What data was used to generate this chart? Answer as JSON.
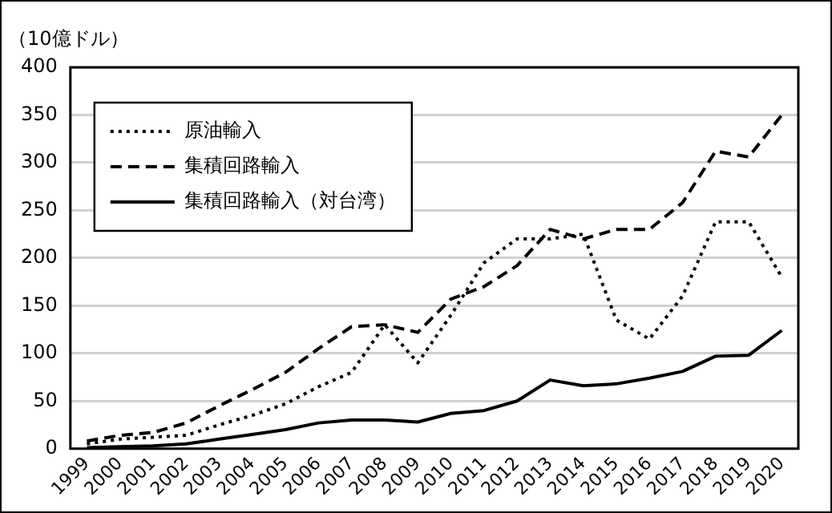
{
  "chart_data": {
    "type": "line",
    "ylabel": "（10億ドル）",
    "categories": [
      "1999",
      "2000",
      "2001",
      "2002",
      "2003",
      "2004",
      "2005",
      "2006",
      "2007",
      "2008",
      "2009",
      "2010",
      "2011",
      "2012",
      "2013",
      "2014",
      "2015",
      "2016",
      "2017",
      "2018",
      "2019",
      "2020"
    ],
    "series": [
      {
        "name": "原油輸入",
        "color": "#000000",
        "line_style": "dotted",
        "values": [
          5,
          10,
          12,
          14,
          25,
          35,
          47,
          65,
          80,
          130,
          90,
          140,
          195,
          220,
          220,
          225,
          135,
          115,
          160,
          238,
          238,
          180
        ]
      },
      {
        "name": "集積回路輸入",
        "color": "#000000",
        "line_style": "dashed",
        "values": [
          8,
          14,
          17,
          27,
          45,
          62,
          80,
          105,
          128,
          130,
          122,
          157,
          170,
          192,
          230,
          220,
          230,
          230,
          258,
          312,
          306,
          350
        ]
      },
      {
        "name": "集積回路輸入（対台湾）",
        "color": "#000000",
        "line_style": "solid",
        "values": [
          1,
          2,
          3,
          5,
          10,
          15,
          20,
          27,
          30,
          30,
          28,
          37,
          40,
          50,
          72,
          66,
          68,
          74,
          81,
          97,
          98,
          124
        ]
      }
    ],
    "ylim": [
      0,
      400
    ],
    "yticks": [
      0,
      50,
      100,
      150,
      200,
      250,
      300,
      350,
      400
    ],
    "grid": "y",
    "legend": "top left",
    "marker": "none"
  }
}
